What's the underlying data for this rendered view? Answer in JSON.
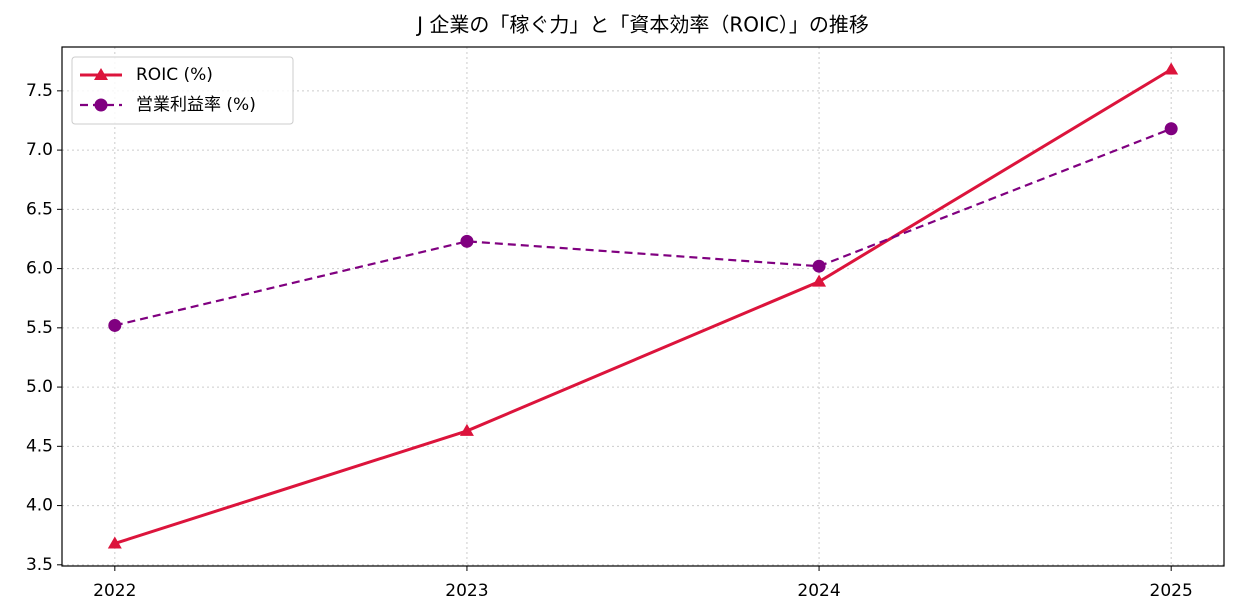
{
  "chart_data": {
    "type": "line",
    "title": "J 企業の「稼ぐ力」と「資本効率（ROIC）」の推移",
    "x": [
      2022,
      2023,
      2024,
      2025
    ],
    "xlim": [
      2021.85,
      2025.15
    ],
    "xticks": [
      2022,
      2023,
      2024,
      2025
    ],
    "ylim": [
      3.49,
      7.87
    ],
    "yticks": [
      3.5,
      {
        "value": 4.0,
        "label": "4.0"
      },
      4.5,
      {
        "value": 5.0,
        "label": "5.0"
      },
      5.5,
      {
        "value": 6.0,
        "label": "6.0"
      },
      6.5,
      {
        "value": 7.0,
        "label": "7.0"
      },
      7.5
    ],
    "grid": true,
    "legend": "upper left",
    "series": [
      {
        "name": "ROIC (%)",
        "color": "#dc143c",
        "marker": "triangle",
        "linestyle": "solid",
        "values": [
          3.68,
          4.63,
          5.89,
          7.68
        ]
      },
      {
        "name": "営業利益率 (%)",
        "color": "#800080",
        "marker": "circle",
        "linestyle": "dashed",
        "values": [
          5.52,
          6.23,
          6.02,
          7.18
        ]
      }
    ]
  }
}
